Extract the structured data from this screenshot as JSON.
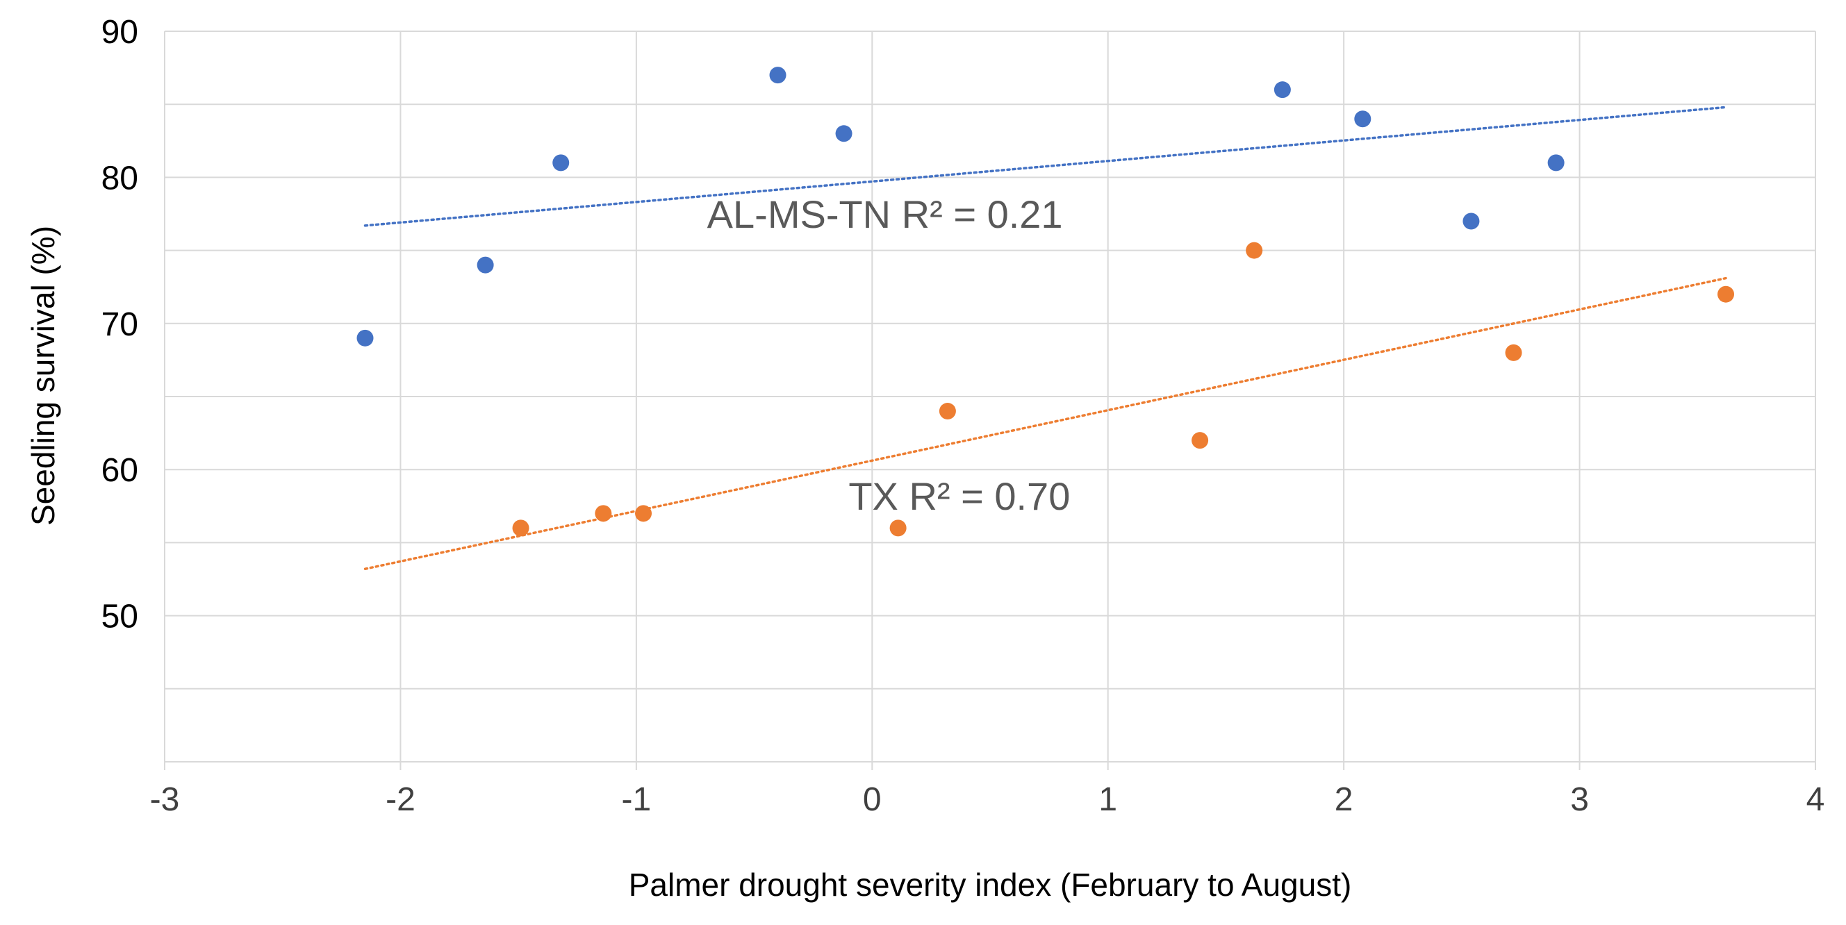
{
  "chart_data": {
    "type": "scatter",
    "title": "",
    "xlabel": "Palmer drought severity index (February to August)",
    "ylabel": "Seedling survival (%)",
    "xlim": [
      -3,
      4
    ],
    "ylim": [
      40,
      90
    ],
    "x_ticks": [
      -3,
      -2,
      -1,
      0,
      1,
      2,
      3,
      4
    ],
    "x_tick_labels": [
      "-3",
      "-2",
      "-1",
      "0",
      "1",
      "2",
      "3",
      "4"
    ],
    "y_ticks": [
      50,
      60,
      70,
      80,
      90
    ],
    "y_tick_labels": [
      "50",
      "60",
      "70",
      "80",
      "90"
    ],
    "y_gridlines": [
      40,
      45,
      50,
      55,
      60,
      65,
      70,
      75,
      80,
      85,
      90
    ],
    "x_gridlines": [
      -3,
      -2,
      -1,
      0,
      1,
      2,
      3,
      4
    ],
    "series": [
      {
        "name": "AL-MS-TN",
        "color": "#4472c4",
        "points": [
          {
            "x": -2.15,
            "y": 69
          },
          {
            "x": -1.64,
            "y": 74
          },
          {
            "x": -1.32,
            "y": 81
          },
          {
            "x": -0.4,
            "y": 87
          },
          {
            "x": -0.12,
            "y": 83
          },
          {
            "x": 1.74,
            "y": 86
          },
          {
            "x": 2.08,
            "y": 84
          },
          {
            "x": 2.54,
            "y": 77
          },
          {
            "x": 2.9,
            "y": 81
          }
        ],
        "trendline": {
          "x1": -2.15,
          "y1": 76.7,
          "x2": 3.62,
          "y2": 84.8
        },
        "annotation": "AL-MS-TN   R² = 0.21"
      },
      {
        "name": "TX",
        "color": "#ed7d31",
        "points": [
          {
            "x": -1.49,
            "y": 56
          },
          {
            "x": -1.14,
            "y": 57
          },
          {
            "x": -0.97,
            "y": 57
          },
          {
            "x": 0.11,
            "y": 56
          },
          {
            "x": 0.32,
            "y": 64
          },
          {
            "x": 1.39,
            "y": 62
          },
          {
            "x": 1.62,
            "y": 75
          },
          {
            "x": 2.72,
            "y": 68
          },
          {
            "x": 3.62,
            "y": 72
          }
        ],
        "trendline": {
          "x1": -2.15,
          "y1": 53.2,
          "x2": 3.62,
          "y2": 73.1
        },
        "annotation": "TX  R² = 0.70"
      }
    ]
  }
}
